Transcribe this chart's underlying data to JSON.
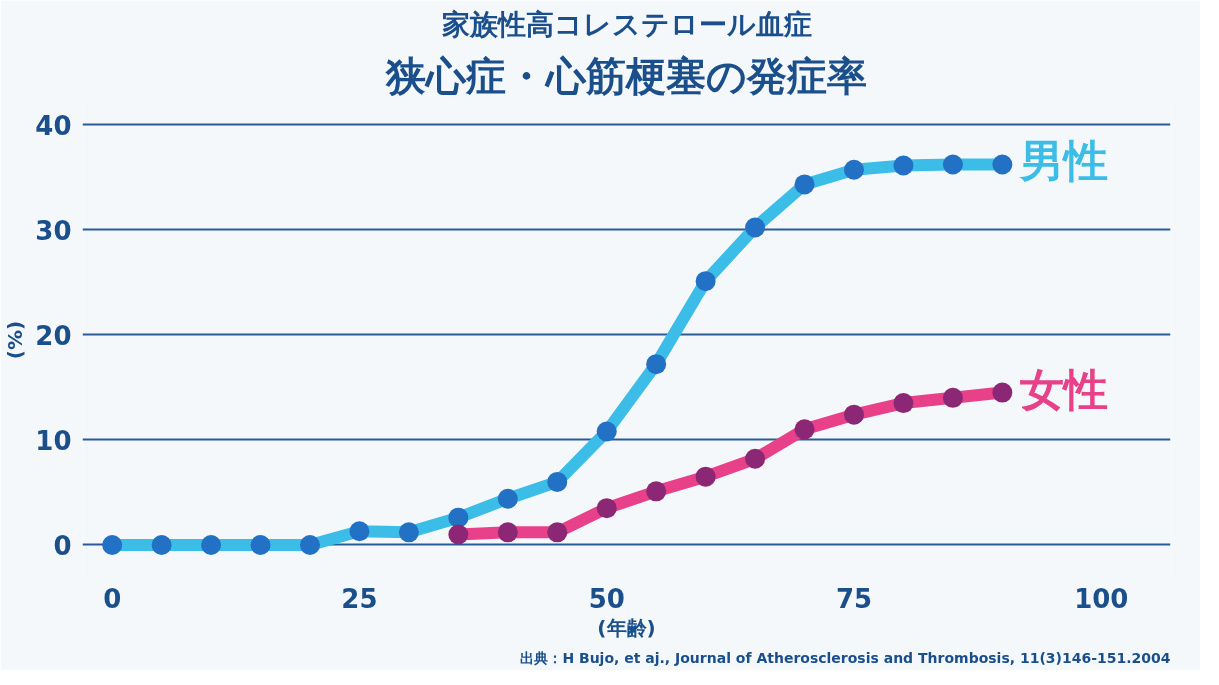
{
  "chart_data": {
    "type": "line",
    "title": "家族性高コレステロール血症",
    "subtitle": "狭心症・心筋梗塞の発症率",
    "xlabel": "(年齢)",
    "ylabel": "(%)",
    "x": [
      0,
      5,
      10,
      15,
      20,
      25,
      30,
      35,
      40,
      45,
      50,
      55,
      60,
      65,
      70,
      75,
      80,
      85,
      90
    ],
    "series": [
      {
        "name": "男性",
        "color": "#3bbde8",
        "values": [
          0,
          0,
          0,
          0,
          0,
          1.3,
          1.2,
          2.6,
          4.4,
          6,
          10.8,
          17.2,
          25.1,
          30.2,
          34.3,
          35.7,
          36.1,
          36.2,
          36.2
        ]
      },
      {
        "name": "女性",
        "color": "#e8418a",
        "values": [
          null,
          null,
          null,
          null,
          null,
          null,
          null,
          1,
          1.2,
          1.2,
          3.5,
          5.1,
          6.5,
          8.2,
          11,
          12.4,
          13.5,
          14,
          14.5
        ]
      }
    ],
    "xlim": [
      -3,
      107
    ],
    "ylim": [
      -3,
      42
    ],
    "xticks": [
      0,
      25,
      50,
      75,
      100
    ],
    "yticks": [
      0,
      10,
      20,
      30,
      40
    ],
    "grid": "y",
    "marker": "circle",
    "line_style": "solid",
    "annotations": [
      "出典：H Bujo, et aj., Journal of Atherosclerosis and Thrombosis, 11(3)146-151.2004"
    ]
  }
}
